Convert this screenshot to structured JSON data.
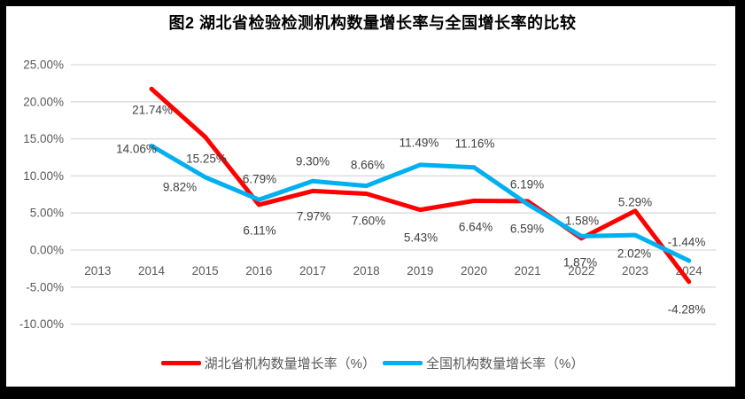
{
  "frame": {
    "bg": "#000000"
  },
  "chart": {
    "panel_bg": "#ffffff",
    "grid_color": "#d9d9d9",
    "axis_text_color": "#595959",
    "label_text_color": "#3f3f3f"
  },
  "chart_data": {
    "type": "line",
    "title": "图2  湖北省检验检测机构数量增长率与全国增长率的比较",
    "categories": [
      "2013",
      "2014",
      "2015",
      "2016",
      "2017",
      "2018",
      "2019",
      "2020",
      "2021",
      "2022",
      "2023",
      "2024"
    ],
    "y_ticks": [
      "25.00%",
      "20.00%",
      "15.00%",
      "10.00%",
      "5.00%",
      "0.00%",
      "-5.00%",
      "-10.00%"
    ],
    "ylim": [
      -10,
      25
    ],
    "y_step": 5,
    "grid": true,
    "legend_position": "bottom",
    "series": [
      {
        "key": "hubei",
        "name": "湖北省机构数量增长率（%）",
        "color": "#ff0000",
        "values": [
          null,
          21.74,
          15.25,
          6.11,
          7.97,
          7.6,
          5.43,
          6.64,
          6.59,
          1.58,
          5.29,
          -4.28
        ],
        "labels": [
          "21.74%",
          "15.25%",
          "6.11%",
          "7.97%",
          "7.60%",
          "5.43%",
          "6.64%",
          "6.59%",
          "1.58%",
          "5.29%",
          "-4.28%"
        ]
      },
      {
        "key": "national",
        "name": "全国机构数量增长率（%）",
        "color": "#00b0f0",
        "values": [
          null,
          14.06,
          9.82,
          6.79,
          9.3,
          8.66,
          11.49,
          11.16,
          6.19,
          1.87,
          2.02,
          -1.44
        ],
        "labels": [
          "14.06%",
          "9.82%",
          "6.79%",
          "9.30%",
          "8.66%",
          "11.49%",
          "11.16%",
          "6.19%",
          "1.87%",
          "2.02%",
          "-1.44%"
        ]
      }
    ]
  }
}
